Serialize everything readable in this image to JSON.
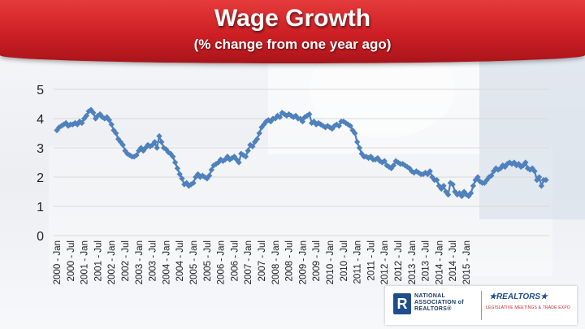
{
  "header": {
    "title": "Wage Growth",
    "subtitle": "(% change from one year ago)"
  },
  "logos": {
    "nar_mark": "R",
    "nar_name": "NATIONAL ASSOCIATION of REALTORS®",
    "realtors": "★REALTORS★",
    "legislative_meetings": "LEGISLATIVE MEETINGS & TRADE EXPO"
  },
  "colors": {
    "series": "#4f81bd",
    "axis_text": "#222222",
    "gridline": "#d9d9d9",
    "header_red": "#cc1f24"
  },
  "chart_data": {
    "type": "line",
    "title": "Wage Growth",
    "subtitle": "(% change from one year ago)",
    "xlabel": "",
    "ylabel": "",
    "ylim": [
      0,
      5
    ],
    "yticks": [
      0,
      1,
      2,
      3,
      4,
      5
    ],
    "grid": true,
    "legend": "none",
    "x_start": "2000-01",
    "x_frequency": "monthly",
    "xtick_labels": [
      "2000 - Jan",
      "2000 - Jul",
      "2001 - Jan",
      "2001 - Jul",
      "2002 - Jan",
      "2002 - Jul",
      "2003 - Jan",
      "2003 - Jul",
      "2004 - Jan",
      "2004 - Jul",
      "2005 - Jan",
      "2005 - Jul",
      "2006 - Jan",
      "2006 - Jul",
      "2007 - Jan",
      "2007 - Jul",
      "2008 - Jan",
      "2008 - Jul",
      "2009 - Jan",
      "2009 - Jul",
      "2010 - Jan",
      "2010 - Jul",
      "2011 - Jan",
      "2011 - Jul",
      "2012 - Jan",
      "2012 - Jul",
      "2013 - Jan",
      "2013 - Jul",
      "2014 - Jan",
      "2014 - Jul",
      "2015 - Jan"
    ],
    "series": [
      {
        "values": [
          3.6,
          3.7,
          3.75,
          3.8,
          3.85,
          3.75,
          3.8,
          3.8,
          3.85,
          3.8,
          3.9,
          3.85,
          4.0,
          4.1,
          4.25,
          4.3,
          4.2,
          4.0,
          4.1,
          4.15,
          4.05,
          4.0,
          4.05,
          3.95,
          3.8,
          3.6,
          3.5,
          3.3,
          3.2,
          3.1,
          2.9,
          2.8,
          2.75,
          2.7,
          2.7,
          2.75,
          2.9,
          3.0,
          2.9,
          3.0,
          3.1,
          3.05,
          3.1,
          3.2,
          3.0,
          3.4,
          3.2,
          3.0,
          2.95,
          2.85,
          2.8,
          2.7,
          2.5,
          2.3,
          2.1,
          1.95,
          1.75,
          1.8,
          1.7,
          1.75,
          1.8,
          2.0,
          2.1,
          2.0,
          2.05,
          2.0,
          1.95,
          2.05,
          2.25,
          2.4,
          2.45,
          2.5,
          2.6,
          2.55,
          2.6,
          2.7,
          2.6,
          2.65,
          2.7,
          2.6,
          2.5,
          2.8,
          2.75,
          2.7,
          2.9,
          3.1,
          3.05,
          3.2,
          3.3,
          3.5,
          3.7,
          3.8,
          3.9,
          3.95,
          3.9,
          4.0,
          4.0,
          4.1,
          4.05,
          4.2,
          4.15,
          4.1,
          4.15,
          4.1,
          4.05,
          4.1,
          4.0,
          4.0,
          3.9,
          4.05,
          4.1,
          4.15,
          3.85,
          3.9,
          3.8,
          3.85,
          3.8,
          3.75,
          3.7,
          3.75,
          3.7,
          3.65,
          3.75,
          3.8,
          3.75,
          3.9,
          3.9,
          3.85,
          3.8,
          3.75,
          3.6,
          3.5,
          3.2,
          3.0,
          2.8,
          2.7,
          2.7,
          2.65,
          2.7,
          2.6,
          2.6,
          2.65,
          2.55,
          2.5,
          2.55,
          2.4,
          2.35,
          2.3,
          2.4,
          2.55,
          2.5,
          2.45,
          2.45,
          2.4,
          2.35,
          2.3,
          2.2,
          2.15,
          2.2,
          2.15,
          2.1,
          2.1,
          2.15,
          2.1,
          2.2,
          2.0,
          1.9,
          1.9,
          1.7,
          1.6,
          1.7,
          1.5,
          1.4,
          1.8,
          1.75,
          1.5,
          1.4,
          1.45,
          1.35,
          1.5,
          1.4,
          1.35,
          1.45,
          1.7,
          1.9,
          2.0,
          1.85,
          1.8,
          1.8,
          1.9,
          2.0,
          2.05,
          2.2,
          2.3,
          2.25,
          2.3,
          2.4,
          2.35,
          2.45,
          2.5,
          2.45,
          2.5,
          2.4,
          2.45,
          2.35,
          2.4,
          2.5,
          2.3,
          2.25,
          2.3,
          2.2,
          1.9,
          2.0,
          1.7,
          1.9,
          1.9
        ]
      }
    ]
  }
}
